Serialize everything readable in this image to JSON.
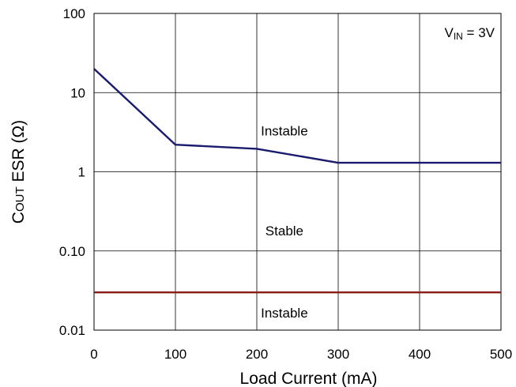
{
  "chart_data": {
    "type": "line",
    "title": "",
    "xlabel": "Load Current (mA)",
    "ylabel": {
      "main": "C",
      "sub": "OUT",
      "rest": " ESR (Ω)"
    },
    "x_scale": "linear",
    "y_scale": "log",
    "xlim": [
      0,
      500
    ],
    "ylim": [
      0.01,
      100
    ],
    "xticks": [
      0,
      100,
      200,
      300,
      400,
      500
    ],
    "xtick_labels": [
      "0",
      "100",
      "200",
      "300",
      "400",
      "500"
    ],
    "yticks": [
      0.01,
      0.1,
      1,
      10,
      100
    ],
    "ytick_labels": [
      "0.01",
      "0.10",
      "1",
      "10",
      "100"
    ],
    "grid": true,
    "annotation": {
      "main": "V",
      "sub": "IN",
      "rest": " = 3V",
      "position": "top-right"
    },
    "series": [
      {
        "color": "#1a1a6e",
        "x": [
          0,
          100,
          200,
          300,
          500
        ],
        "y": [
          20,
          2.2,
          1.95,
          1.3,
          1.3
        ]
      },
      {
        "color": "#8b1a1a",
        "x": [
          0,
          500
        ],
        "y": [
          0.03,
          0.03
        ]
      }
    ],
    "regions": [
      {
        "label": "Instable",
        "x": 230,
        "y": 3.3
      },
      {
        "label": "Stable",
        "x": 230,
        "y": 0.18
      },
      {
        "label": "Instable",
        "x": 230,
        "y": 0.0165
      }
    ]
  }
}
